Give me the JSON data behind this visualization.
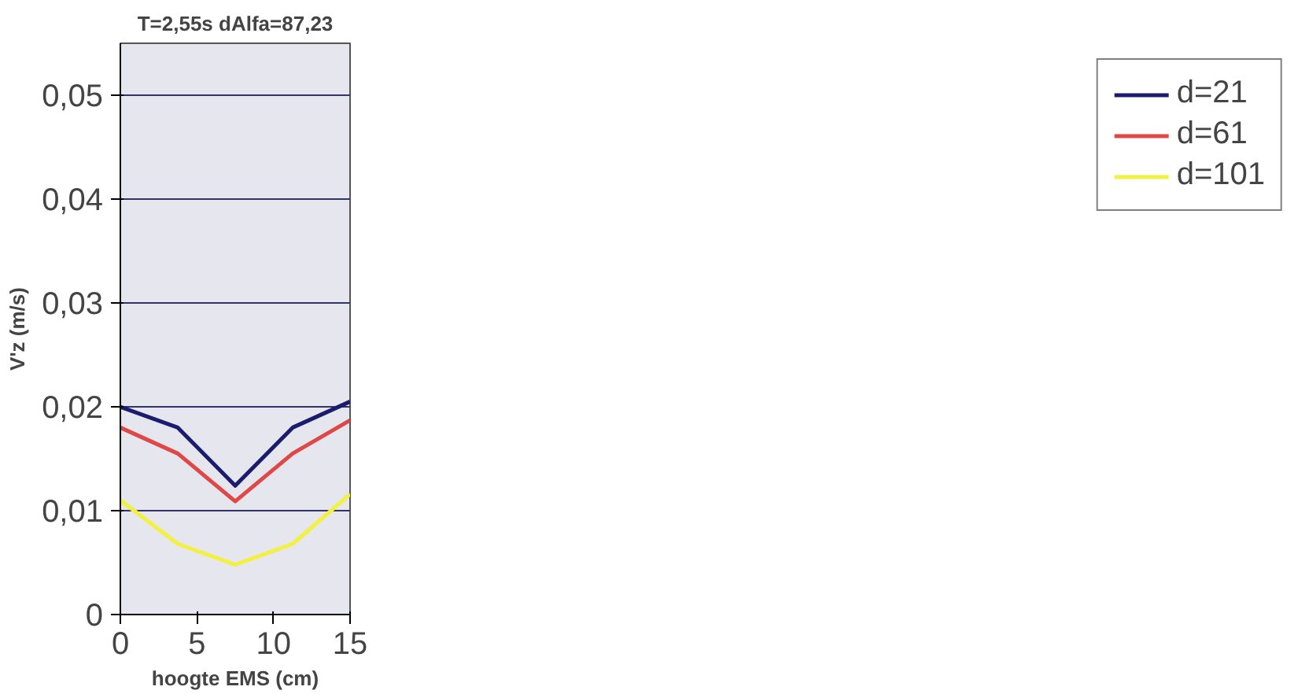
{
  "chart_data": {
    "type": "line",
    "title": "T=2,55s dAlfa=87,23",
    "xlabel": "hoogte EMS (cm)",
    "ylabel": "V'z (m/s)",
    "x": [
      0,
      3.75,
      7.5,
      11.25,
      15
    ],
    "series": [
      {
        "name": "d=21",
        "color": "#1c1c6e",
        "values": [
          0.02,
          0.018,
          0.0124,
          0.018,
          0.0205
        ]
      },
      {
        "name": "d=61",
        "color": "#e04848",
        "values": [
          0.018,
          0.0155,
          0.0109,
          0.0155,
          0.0187
        ]
      },
      {
        "name": "d=101",
        "color": "#f2f040",
        "values": [
          0.011,
          0.0068,
          0.0048,
          0.0068,
          0.0116
        ]
      }
    ],
    "xlim": [
      0,
      15
    ],
    "xticks": [
      0,
      5,
      10,
      15
    ],
    "ylim": [
      0,
      0.055
    ],
    "yticks": [
      {
        "value": 0,
        "label": "0"
      },
      {
        "value": 0.01,
        "label": "0,01"
      },
      {
        "value": 0.02,
        "label": "0,02"
      },
      {
        "value": 0.03,
        "label": "0,03"
      },
      {
        "value": 0.04,
        "label": "0,04"
      },
      {
        "value": 0.05,
        "label": "0,05"
      }
    ],
    "grid": "y",
    "legend": "right",
    "line_style": "solid",
    "marker": "none"
  }
}
